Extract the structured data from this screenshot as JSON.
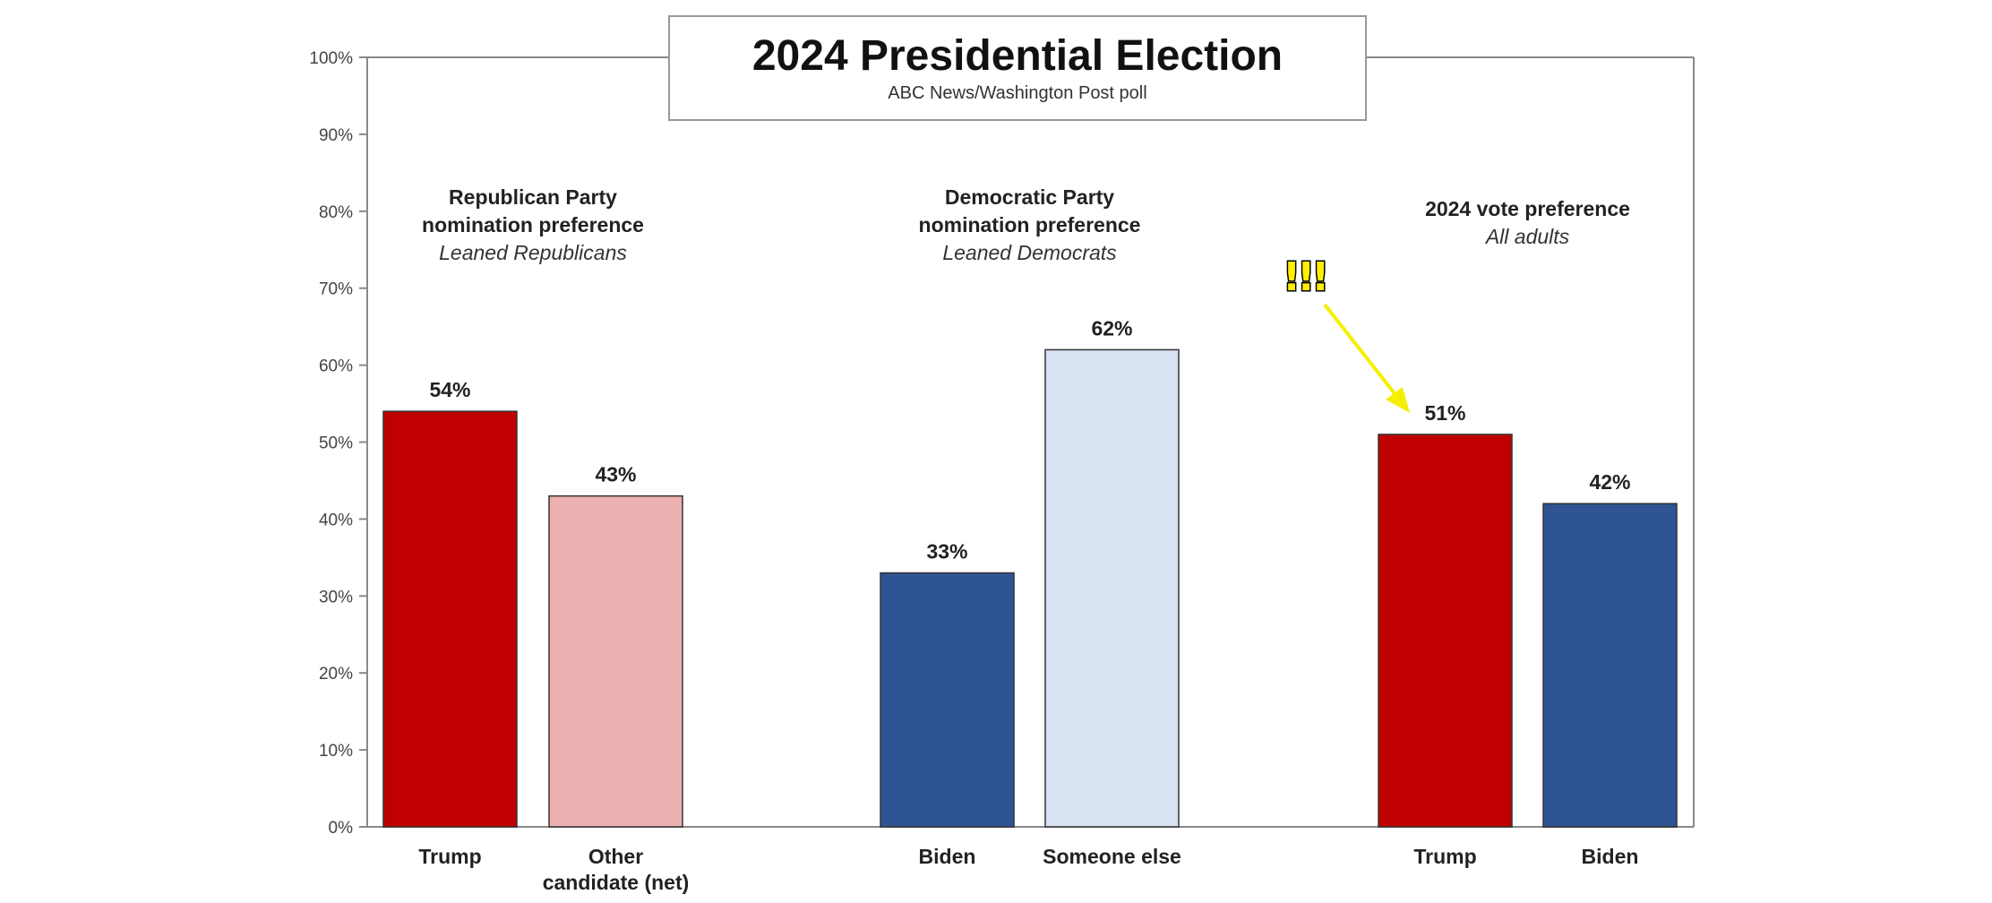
{
  "chart_data": {
    "type": "bar",
    "title": "2024 Presidential Election",
    "subtitle": "ABC News/Washington Post poll",
    "ylim": [
      0,
      100
    ],
    "yticks": [
      "0%",
      "10%",
      "20%",
      "30%",
      "40%",
      "50%",
      "60%",
      "70%",
      "80%",
      "90%",
      "100%"
    ],
    "groups": [
      {
        "heading": [
          "Republican Party",
          "nomination preference"
        ],
        "subheading": "Leaned Republicans",
        "bars": [
          {
            "label": [
              "Trump"
            ],
            "value": 54,
            "text": "54%",
            "color": "#c00000"
          },
          {
            "label": [
              "Other",
              "candidate (net)"
            ],
            "value": 43,
            "text": "43%",
            "color": "#ecb0b0"
          }
        ]
      },
      {
        "heading": [
          "Democratic Party",
          "nomination preference"
        ],
        "subheading": "Leaned Democrats",
        "bars": [
          {
            "label": [
              "Biden"
            ],
            "value": 33,
            "text": "33%",
            "color": "#2e5494"
          },
          {
            "label": [
              "Someone else"
            ],
            "value": 62,
            "text": "62%",
            "color": "#d9e2f2"
          }
        ]
      },
      {
        "heading": [
          "2024 vote preference"
        ],
        "subheading": "All adults",
        "bars": [
          {
            "label": [
              "Trump"
            ],
            "value": 51,
            "text": "51%",
            "color": "#c00000"
          },
          {
            "label": [
              "Biden"
            ],
            "value": 42,
            "text": "42%",
            "color": "#2e5494"
          }
        ]
      }
    ],
    "annotation": {
      "text": "!!!",
      "color": "#ffee00",
      "points_to": "Trump 2024 vote preference 51%"
    }
  }
}
